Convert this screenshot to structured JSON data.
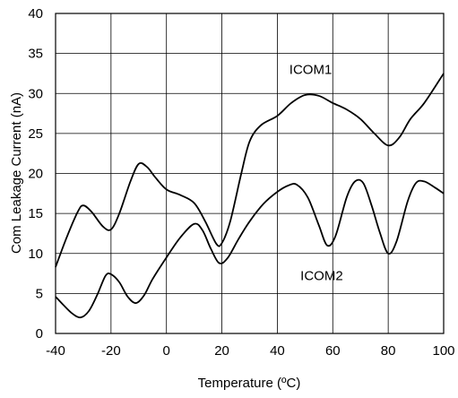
{
  "chart_data": {
    "type": "line",
    "title": "",
    "xlabel": "Temperature (ºC)",
    "ylabel": "Com Leakage Current (nA)",
    "xlim": [
      -40,
      100
    ],
    "ylim": [
      0,
      40
    ],
    "x_ticks": [
      -40,
      -20,
      0,
      20,
      40,
      60,
      80,
      100
    ],
    "y_ticks": [
      0,
      5,
      10,
      15,
      20,
      25,
      30,
      35,
      40
    ],
    "x_tick_labels": [
      "-40",
      "-20",
      "0",
      "20",
      "40",
      "60",
      "80",
      "100"
    ],
    "y_tick_labels": [
      "0",
      "5",
      "10",
      "15",
      "20",
      "25",
      "30",
      "35",
      "40"
    ],
    "grid": true,
    "legend": "none",
    "series": [
      {
        "name": "ICOM1",
        "color": "#000000",
        "points": [
          [
            -40,
            8.3
          ],
          [
            -36,
            12.0
          ],
          [
            -32,
            15.2
          ],
          [
            -30,
            16.0
          ],
          [
            -27,
            15.2
          ],
          [
            -23,
            13.4
          ],
          [
            -20,
            13.0
          ],
          [
            -17,
            15.0
          ],
          [
            -13,
            19.0
          ],
          [
            -10,
            21.2
          ],
          [
            -7,
            20.8
          ],
          [
            -4,
            19.5
          ],
          [
            0,
            18.0
          ],
          [
            5,
            17.3
          ],
          [
            10,
            16.3
          ],
          [
            14,
            14.0
          ],
          [
            18,
            11.2
          ],
          [
            20,
            11.3
          ],
          [
            23,
            14.0
          ],
          [
            27,
            20.0
          ],
          [
            30,
            24.0
          ],
          [
            34,
            26.0
          ],
          [
            40,
            27.2
          ],
          [
            45,
            28.8
          ],
          [
            50,
            29.8
          ],
          [
            55,
            29.7
          ],
          [
            60,
            28.8
          ],
          [
            65,
            28.0
          ],
          [
            70,
            26.8
          ],
          [
            75,
            25.0
          ],
          [
            80,
            23.5
          ],
          [
            84,
            24.5
          ],
          [
            88,
            26.8
          ],
          [
            93,
            28.8
          ],
          [
            100,
            32.5
          ]
        ],
        "label_pos": [
          52,
          33
        ]
      },
      {
        "name": "ICOM2",
        "color": "#000000",
        "points": [
          [
            -40,
            4.6
          ],
          [
            -37,
            3.5
          ],
          [
            -34,
            2.5
          ],
          [
            -31,
            2.0
          ],
          [
            -28,
            2.8
          ],
          [
            -25,
            4.8
          ],
          [
            -22,
            7.2
          ],
          [
            -20,
            7.4
          ],
          [
            -17,
            6.4
          ],
          [
            -14,
            4.6
          ],
          [
            -11,
            3.8
          ],
          [
            -8,
            4.8
          ],
          [
            -5,
            6.8
          ],
          [
            0,
            9.5
          ],
          [
            5,
            12.0
          ],
          [
            10,
            13.7
          ],
          [
            13,
            12.9
          ],
          [
            16,
            10.6
          ],
          [
            19,
            8.8
          ],
          [
            22,
            9.4
          ],
          [
            26,
            11.8
          ],
          [
            30,
            14.0
          ],
          [
            35,
            16.2
          ],
          [
            40,
            17.7
          ],
          [
            44,
            18.5
          ],
          [
            47,
            18.6
          ],
          [
            51,
            17.0
          ],
          [
            55,
            13.5
          ],
          [
            58,
            11.0
          ],
          [
            61,
            12.2
          ],
          [
            65,
            17.0
          ],
          [
            68,
            19.0
          ],
          [
            71,
            18.8
          ],
          [
            74,
            16.0
          ],
          [
            77,
            12.6
          ],
          [
            80,
            10.0
          ],
          [
            83,
            11.5
          ],
          [
            87,
            16.5
          ],
          [
            90,
            18.8
          ],
          [
            93,
            19.0
          ],
          [
            97,
            18.2
          ],
          [
            100,
            17.5
          ]
        ],
        "label_pos": [
          56,
          7.2
        ]
      }
    ]
  }
}
